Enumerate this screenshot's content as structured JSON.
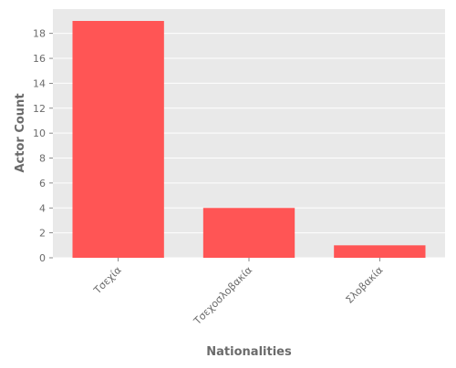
{
  "chart_data": {
    "type": "bar",
    "categories": [
      "Τσεχία",
      "Τσεχοσλοβακία",
      "Σλοβακία"
    ],
    "values": [
      19,
      4,
      1
    ],
    "title": "",
    "xlabel": "Nationalities",
    "ylabel": "Actor Count",
    "ylim": [
      0,
      19.95
    ],
    "yticks": [
      0,
      2,
      4,
      6,
      8,
      10,
      12,
      14,
      16,
      18
    ],
    "grid": true,
    "colors": {
      "bar": "#ff5555",
      "plot_background": "#e9e9e9",
      "grid": "#ffffff",
      "text": "#6b6b6b"
    }
  }
}
